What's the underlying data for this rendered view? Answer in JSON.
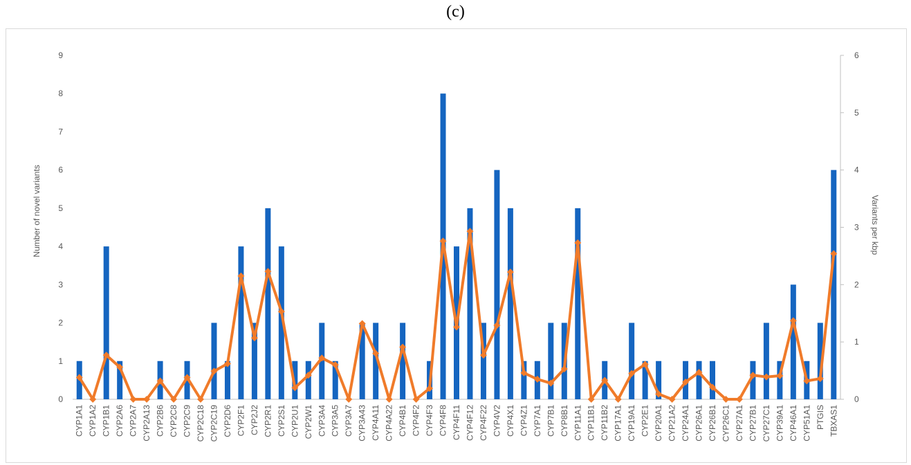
{
  "panel_label": "(c)",
  "chart_data": {
    "type": "bar",
    "title": "",
    "categories": [
      "CYP1A1",
      "CYP1A2",
      "CYP1B1",
      "CYP2A6",
      "CYP2A7",
      "CYP2A13",
      "CYP2B6",
      "CYP2C8",
      "CYP2C9",
      "CYP2C18",
      "CYP2C19",
      "CYP2D6",
      "CYP2F1",
      "CYP2J2",
      "CYP2R1",
      "CYP2S1",
      "CYP2U1",
      "CYP2W1",
      "CYP3A4",
      "CYP3A5",
      "CYP3A7",
      "CYP3A43",
      "CYP4A11",
      "CYP4A22",
      "CYP4B1",
      "CYP4F2",
      "CYP4F3",
      "CYP4F8",
      "CYP4F11",
      "CYP4F12",
      "CYP4F22",
      "CYP4V2",
      "CYP4X1",
      "CYP4Z1",
      "CYP7A1",
      "CYP7B1",
      "CYP8B1",
      "CYP11A1",
      "CYP11B1",
      "CYP11B2",
      "CYP17A1",
      "CYP19A1",
      "CYP2E1",
      "CYP20A1",
      "CYP21A2",
      "CYP24A1",
      "CYP26A1",
      "CYP26B1",
      "CYP26C1",
      "CYP27A1",
      "CYP27B1",
      "CYP27C1",
      "CYP39A1",
      "CYP46A1",
      "CYP51A1",
      "PTGIS",
      "TBXAS1"
    ],
    "series": [
      {
        "name": "",
        "kind": "bar",
        "axis": "left",
        "color": "#1565c0",
        "values": [
          1,
          0,
          4,
          1,
          0,
          0,
          1,
          0,
          1,
          0,
          2,
          1,
          4,
          2,
          5,
          4,
          1,
          1,
          2,
          1,
          0,
          2,
          2,
          0,
          2,
          0,
          1,
          8,
          4,
          5,
          2,
          6,
          5,
          1,
          1,
          2,
          2,
          5,
          0,
          1,
          0,
          2,
          1,
          1,
          0,
          1,
          1,
          1,
          0,
          0,
          1,
          2,
          1,
          3,
          1,
          2,
          6
        ]
      },
      {
        "name": "",
        "kind": "line",
        "axis": "right",
        "color": "#f07b2a",
        "values": [
          0.38,
          0,
          0.77,
          0.56,
          0,
          0,
          0.32,
          0,
          0.38,
          0,
          0.49,
          0.62,
          2.15,
          1.07,
          2.23,
          1.53,
          0.2,
          0.42,
          0.72,
          0.6,
          0,
          1.32,
          0.8,
          0,
          0.91,
          0,
          0.19,
          2.76,
          1.26,
          2.93,
          0.77,
          1.29,
          2.22,
          0.46,
          0.35,
          0.28,
          0.53,
          2.73,
          0,
          0.33,
          0,
          0.45,
          0.61,
          0.09,
          0,
          0.3,
          0.47,
          0.21,
          0,
          0,
          0.42,
          0.39,
          0.41,
          1.37,
          0.32,
          0.36,
          2.54
        ]
      }
    ],
    "ylabel": "Number of novel variants",
    "y2label": "Variants per kbp",
    "ylim": [
      0,
      9
    ],
    "y2lim": [
      0,
      6
    ],
    "yticks": [
      "0",
      "1",
      "2",
      "3",
      "4",
      "5",
      "6",
      "7",
      "8",
      "9"
    ],
    "y2ticks": [
      "0",
      "1",
      "2",
      "3",
      "4",
      "5",
      "6"
    ],
    "grid": false,
    "legend": "none"
  }
}
